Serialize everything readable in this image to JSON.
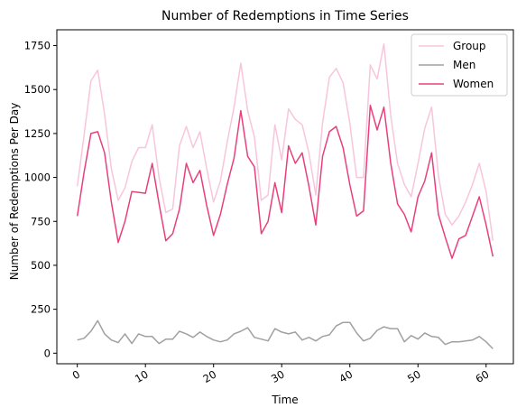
{
  "chart_data": {
    "type": "line",
    "title": "Number of Redemptions in Time Series",
    "xlabel": "Time",
    "ylabel": "Number of Redemptions Per Day",
    "xlim": [
      -3,
      64
    ],
    "ylim": [
      -60,
      1840
    ],
    "xticks": [
      0,
      10,
      20,
      30,
      40,
      50,
      60
    ],
    "yticks": [
      0,
      250,
      500,
      750,
      1000,
      1250,
      1500,
      1750
    ],
    "grid": false,
    "legend_position": "top-right",
    "series": [
      {
        "name": "Group",
        "color": "#f7c6dc",
        "values": [
          950,
          1240,
          1550,
          1610,
          1360,
          1050,
          870,
          940,
          1090,
          1170,
          1170,
          1300,
          1000,
          800,
          820,
          1180,
          1290,
          1170,
          1260,
          1050,
          860,
          980,
          1200,
          1400,
          1650,
          1380,
          1230,
          870,
          900,
          1300,
          1100,
          1390,
          1330,
          1300,
          1140,
          900,
          1310,
          1570,
          1620,
          1540,
          1310,
          1000,
          1000,
          1640,
          1560,
          1760,
          1350,
          1080,
          960,
          890,
          1080,
          1280,
          1400,
          1010,
          790,
          730,
          780,
          860,
          960,
          1080,
          920,
          640
        ]
      },
      {
        "name": "Men",
        "color": "#a0a0a0",
        "values": [
          75,
          85,
          125,
          185,
          110,
          75,
          60,
          110,
          55,
          110,
          95,
          95,
          55,
          80,
          80,
          125,
          110,
          90,
          120,
          95,
          75,
          65,
          75,
          110,
          125,
          145,
          90,
          80,
          70,
          140,
          120,
          110,
          120,
          75,
          90,
          70,
          95,
          105,
          155,
          175,
          175,
          115,
          70,
          85,
          130,
          150,
          140,
          140,
          65,
          100,
          80,
          115,
          95,
          90,
          50,
          65,
          65,
          70,
          75,
          95,
          65,
          25
        ]
      },
      {
        "name": "Women",
        "color": "#e8407c",
        "values": [
          780,
          1030,
          1250,
          1260,
          1140,
          860,
          630,
          750,
          920,
          915,
          910,
          1080,
          850,
          640,
          680,
          820,
          1080,
          970,
          1040,
          840,
          670,
          790,
          960,
          1110,
          1380,
          1120,
          1060,
          680,
          750,
          970,
          800,
          1180,
          1080,
          1140,
          950,
          730,
          1120,
          1260,
          1290,
          1170,
          960,
          780,
          810,
          1410,
          1270,
          1400,
          1080,
          850,
          790,
          690,
          890,
          980,
          1140,
          790,
          660,
          540,
          650,
          670,
          780,
          890,
          730,
          550
        ]
      }
    ]
  }
}
